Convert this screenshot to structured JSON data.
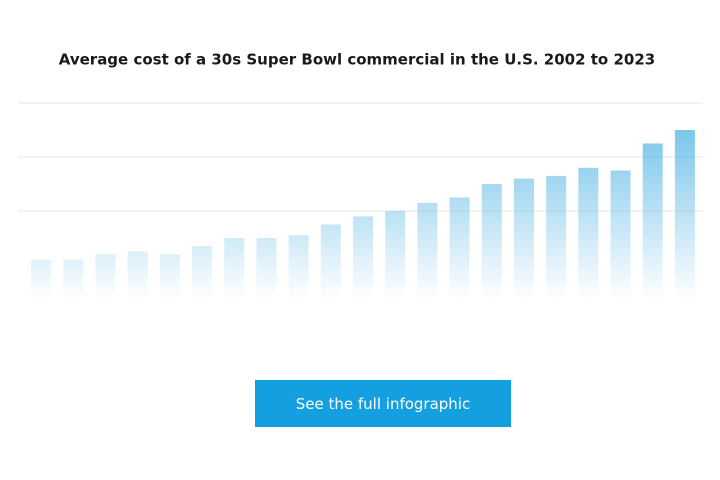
{
  "chart_data": {
    "type": "bar",
    "title": "Average cost of a 30s Super Bowl commercial in the U.S. 2002 to 2023",
    "values": [
      2.2,
      2.2,
      2.4,
      2.5,
      2.4,
      2.7,
      3.0,
      3.0,
      3.1,
      3.5,
      3.8,
      4.0,
      4.3,
      4.5,
      5.0,
      5.2,
      5.3,
      5.6,
      5.5,
      6.5,
      7.0
    ],
    "color": "#5bb8e6",
    "ylim": [
      0,
      8
    ],
    "yticks": [
      4,
      6,
      8
    ],
    "grid": true
  },
  "button": {
    "label": "See the full infographic"
  }
}
